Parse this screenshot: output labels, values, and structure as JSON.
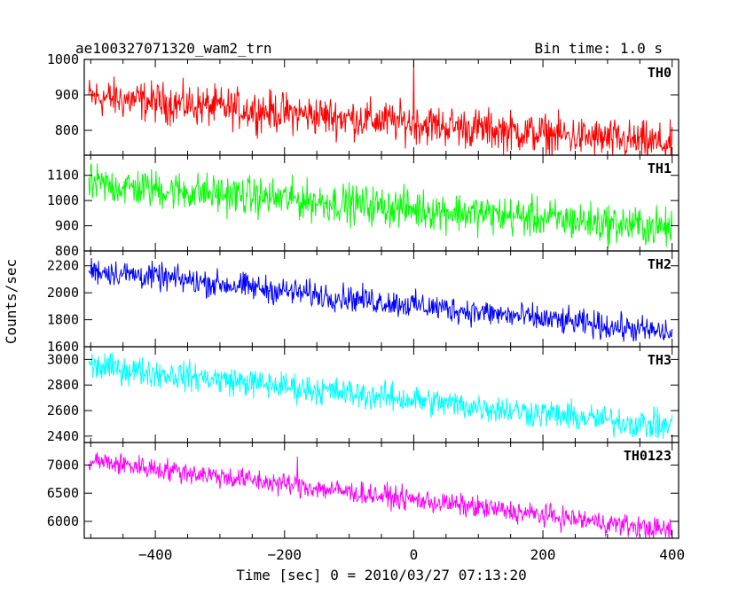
{
  "title": "ae100327071320_wam2_trn",
  "bin_time": "Bin time: 1.0 s",
  "chart_data": {
    "type": "line",
    "title": "ae100327071320_wam2_trn",
    "subtitle": "Bin time: 1.0 s",
    "xlabel": "Time [sec] 0 = 2010/03/27 07:13:20",
    "ylabel": "Counts/sec",
    "xlim": [
      -510,
      410
    ],
    "xticks": [
      -400,
      -200,
      0,
      200,
      400
    ],
    "xtick_labels": [
      "−400",
      "−200",
      "0",
      "200",
      "400"
    ],
    "bin_time_s": 1.0,
    "grid": false,
    "series": [
      {
        "name": "TH0",
        "color": "#ff0000",
        "ylim": [
          730,
          1000
        ],
        "yticks": [
          800,
          900,
          1000
        ],
        "x_range": [
          -503,
          400
        ],
        "trend_start": 895,
        "trend_end": 760,
        "noise_amplitude": 40,
        "spike": {
          "x": 0,
          "y": 1000
        }
      },
      {
        "name": "TH1",
        "color": "#00ff00",
        "ylim": [
          800,
          1180
        ],
        "yticks": [
          800,
          900,
          1000,
          1100
        ],
        "x_range": [
          -503,
          400
        ],
        "trend_start": 1065,
        "trend_end": 890,
        "noise_amplitude": 55
      },
      {
        "name": "TH2",
        "color": "#0000ff",
        "ylim": [
          1600,
          2310
        ],
        "yticks": [
          1600,
          1800,
          2000,
          2200
        ],
        "x_range": [
          -503,
          400
        ],
        "trend_start": 2170,
        "trend_end": 1700,
        "noise_amplitude": 70
      },
      {
        "name": "TH3",
        "color": "#00ffff",
        "ylim": [
          2350,
          3100
        ],
        "yticks": [
          2400,
          2600,
          2800,
          3000
        ],
        "x_range": [
          -503,
          400
        ],
        "trend_start": 2950,
        "trend_end": 2470,
        "noise_amplitude": 80
      },
      {
        "name": "TH0123",
        "color": "#ff00ff",
        "ylim": [
          5700,
          7400
        ],
        "yticks": [
          6000,
          6500,
          7000
        ],
        "x_range": [
          -503,
          400
        ],
        "trend_start": 7080,
        "trend_end": 5830,
        "noise_amplitude": 140,
        "spike": {
          "x": -180,
          "y": 7150
        }
      }
    ]
  }
}
